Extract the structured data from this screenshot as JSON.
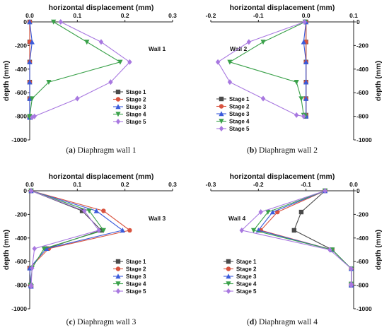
{
  "series_styles": [
    {
      "name": "Stage 1",
      "color": "#4a4a4a",
      "marker": "square"
    },
    {
      "name": "Stage 2",
      "color": "#d9533f",
      "marker": "circle"
    },
    {
      "name": "Stage 3",
      "color": "#3b5bdb",
      "marker": "triangle-up"
    },
    {
      "name": "Stage 4",
      "color": "#3aa14a",
      "marker": "triangle-down"
    },
    {
      "name": "Stage 5",
      "color": "#a878e0",
      "marker": "diamond"
    }
  ],
  "chart_data": [
    {
      "type": "line",
      "wall_label": "Wall 1",
      "caption_letter": "(a)",
      "caption_text": "Diaphragm wall 1",
      "xlabel": "horizontal displacement (mm)",
      "ylabel": "depth (mm)",
      "xlim": [
        0,
        0.3
      ],
      "ylim": [
        -1000,
        0
      ],
      "xticks": [
        "0.0",
        "0.1",
        "0.2",
        "0.3"
      ],
      "yticks": [
        "0",
        "-200",
        "-400",
        "-600",
        "-800",
        "-1000"
      ],
      "y_axis_side": "left",
      "legend_position": "lower-right",
      "series": [
        {
          "name": "Stage 1",
          "x": [
            0,
            0,
            0,
            0,
            0,
            0,
            0
          ],
          "y": [
            0,
            -170,
            -340,
            -510,
            -650,
            -800,
            -810
          ]
        },
        {
          "name": "Stage 2",
          "x": [
            0,
            0,
            0,
            0,
            0,
            0,
            0
          ],
          "y": [
            0,
            -170,
            -340,
            -510,
            -650,
            -800,
            -810
          ]
        },
        {
          "name": "Stage 3",
          "x": [
            0,
            0.005,
            0,
            0,
            0,
            0,
            0
          ],
          "y": [
            0,
            -170,
            -340,
            -510,
            -650,
            -800,
            -810
          ]
        },
        {
          "name": "Stage 4",
          "x": [
            0.05,
            0.12,
            0.19,
            0.04,
            0.005,
            0,
            0
          ],
          "y": [
            0,
            -170,
            -340,
            -510,
            -650,
            -800,
            -810
          ]
        },
        {
          "name": "Stage 5",
          "x": [
            0.065,
            0.15,
            0.21,
            0.17,
            0.1,
            0.01,
            0.005
          ],
          "y": [
            0,
            -170,
            -340,
            -510,
            -650,
            -800,
            -810
          ]
        }
      ]
    },
    {
      "type": "line",
      "wall_label": "Wall 2",
      "caption_letter": "(b)",
      "caption_text": "Diaphragm wall 2",
      "xlabel": "horizontal displacement (mm)",
      "ylabel": "depth (mm)",
      "xlim": [
        -0.2,
        0.1
      ],
      "ylim": [
        -1000,
        0
      ],
      "xticks": [
        "-0.2",
        "-0.1",
        "0.0",
        "0.1"
      ],
      "yticks": [
        "0",
        "-200",
        "-400",
        "-600",
        "-800",
        "-1000"
      ],
      "y_axis_side": "right",
      "legend_position": "lower-left",
      "series": [
        {
          "name": "Stage 1",
          "x": [
            0,
            0,
            0,
            0,
            0,
            0,
            0
          ],
          "y": [
            0,
            -170,
            -340,
            -510,
            -650,
            -790,
            -800
          ]
        },
        {
          "name": "Stage 2",
          "x": [
            0,
            0,
            0,
            0,
            0,
            0,
            0
          ],
          "y": [
            0,
            -170,
            -340,
            -510,
            -650,
            -790,
            -800
          ]
        },
        {
          "name": "Stage 3",
          "x": [
            0,
            -0.005,
            0,
            0,
            0,
            0,
            0
          ],
          "y": [
            0,
            -170,
            -340,
            -510,
            -650,
            -790,
            -800
          ]
        },
        {
          "name": "Stage 4",
          "x": [
            -0.002,
            -0.09,
            -0.16,
            -0.02,
            -0.01,
            -0.005,
            -0.002
          ],
          "y": [
            0,
            -170,
            -340,
            -510,
            -650,
            -790,
            -800
          ]
        },
        {
          "name": "Stage 5",
          "x": [
            -0.003,
            -0.12,
            -0.185,
            -0.16,
            -0.09,
            -0.02,
            -0.005
          ],
          "y": [
            0,
            -170,
            -340,
            -510,
            -650,
            -790,
            -800
          ]
        }
      ]
    },
    {
      "type": "line",
      "wall_label": "Wall 3",
      "caption_letter": "(c)",
      "caption_text": "Diaphragm wall 3",
      "xlabel": "horizontal displacement (mm)",
      "ylabel": "depth (mm)",
      "xlim": [
        0,
        0.3
      ],
      "ylim": [
        -1000,
        0
      ],
      "xticks": [
        "0.0",
        "0.1",
        "0.2",
        "0.3"
      ],
      "yticks": [
        "0",
        "-200",
        "-400",
        "-600",
        "-800",
        "-1000"
      ],
      "y_axis_side": "left",
      "legend_position": "lower-right",
      "series": [
        {
          "name": "Stage 1",
          "x": [
            0.003,
            0.11,
            0.15,
            0.035,
            0.0,
            0.002,
            0.003
          ],
          "y": [
            0,
            -170,
            -335,
            -490,
            -655,
            -800,
            -810
          ]
        },
        {
          "name": "Stage 2",
          "x": [
            0.003,
            0.155,
            0.21,
            0.04,
            0.0,
            0.002,
            0.003
          ],
          "y": [
            0,
            -170,
            -335,
            -490,
            -655,
            -800,
            -810
          ]
        },
        {
          "name": "Stage 3",
          "x": [
            0.003,
            0.14,
            0.195,
            0.035,
            0.0,
            0.002,
            0.003
          ],
          "y": [
            0,
            -170,
            -335,
            -490,
            -655,
            -800,
            -810
          ]
        },
        {
          "name": "Stage 4",
          "x": [
            0.003,
            0.125,
            0.155,
            0.03,
            0.005,
            0.002,
            0.003
          ],
          "y": [
            0,
            -170,
            -335,
            -490,
            -655,
            -800,
            -810
          ]
        },
        {
          "name": "Stage 5",
          "x": [
            0.003,
            0.115,
            0.145,
            0.01,
            0.005,
            0.003,
            0.003
          ],
          "y": [
            0,
            -170,
            -335,
            -490,
            -655,
            -800,
            -810
          ]
        }
      ]
    },
    {
      "type": "line",
      "wall_label": "Wall 4",
      "caption_letter": "(d)",
      "caption_text": "Diaphragm wall 4",
      "xlabel": "horizontal displacement (mm)",
      "ylabel": "depth (mm)",
      "xlim": [
        -0.3,
        0.0
      ],
      "ylim": [
        -1000,
        0
      ],
      "xticks": [
        "-0.3",
        "-0.2",
        "-0.1",
        "0.0"
      ],
      "yticks": [
        "0",
        "-200",
        "-400",
        "-600",
        "-800",
        "-1000"
      ],
      "y_axis_side": "right",
      "legend_position": "lower-left",
      "series": [
        {
          "name": "Stage 1",
          "x": [
            -0.06,
            -0.11,
            -0.125,
            -0.045,
            -0.005,
            -0.005,
            -0.005
          ],
          "y": [
            0,
            -180,
            -335,
            -500,
            -660,
            -790,
            -800
          ]
        },
        {
          "name": "Stage 2",
          "x": [
            -0.06,
            -0.16,
            -0.195,
            -0.045,
            -0.005,
            -0.005,
            -0.005
          ],
          "y": [
            0,
            -180,
            -335,
            -500,
            -660,
            -790,
            -800
          ]
        },
        {
          "name": "Stage 3",
          "x": [
            -0.06,
            -0.17,
            -0.2,
            -0.045,
            -0.005,
            -0.005,
            -0.005
          ],
          "y": [
            0,
            -180,
            -335,
            -500,
            -660,
            -790,
            -800
          ]
        },
        {
          "name": "Stage 4",
          "x": [
            -0.06,
            -0.18,
            -0.21,
            -0.045,
            -0.005,
            -0.005,
            -0.005
          ],
          "y": [
            0,
            -180,
            -335,
            -500,
            -660,
            -790,
            -800
          ]
        },
        {
          "name": "Stage 5",
          "x": [
            -0.06,
            -0.195,
            -0.235,
            -0.05,
            -0.005,
            -0.005,
            -0.005
          ],
          "y": [
            0,
            -180,
            -335,
            -500,
            -660,
            -790,
            -800
          ]
        }
      ]
    }
  ]
}
